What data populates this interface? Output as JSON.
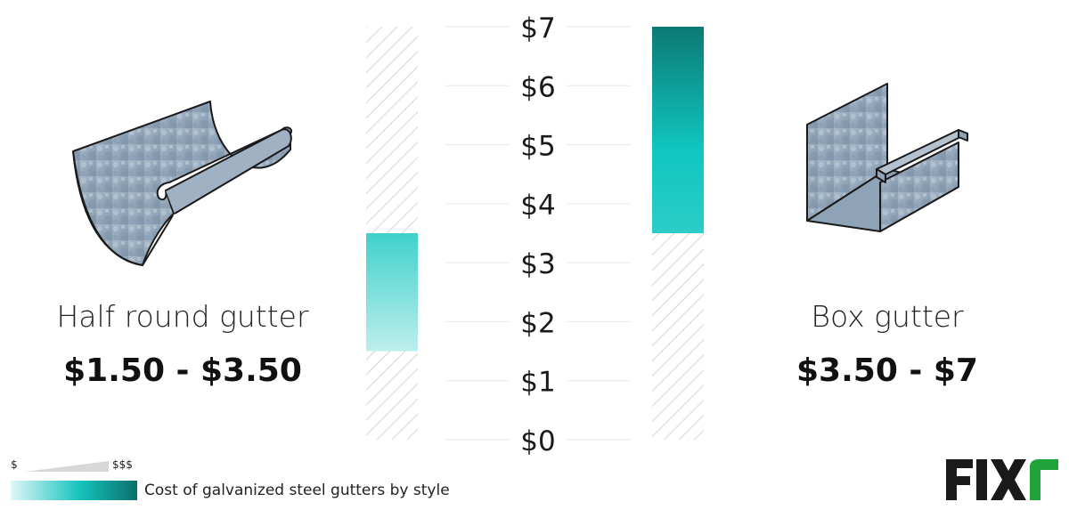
{
  "chart_data": {
    "type": "bar",
    "title": "Cost of galvanized steel gutters by style",
    "categories": [
      "Half round gutter",
      "Box gutter"
    ],
    "series": [
      {
        "values": [
          [
            1.5,
            3.5
          ],
          [
            3.5,
            7
          ]
        ]
      }
    ],
    "ylim": [
      0,
      7
    ],
    "y_ticks": [
      "$0",
      "$1",
      "$2",
      "$3",
      "$4",
      "$5",
      "$6",
      "$7"
    ],
    "grid": true,
    "colors": {
      "low": "#bff0ee",
      "mid": "#14c9c3",
      "high": "#0b7a74",
      "hatch": "#cccccc",
      "grid": "#e6e6e6"
    }
  },
  "items": [
    {
      "name": "Half round gutter",
      "range": "$1.50 - $3.50",
      "icon": "half-round-gutter-icon"
    },
    {
      "name": "Box gutter",
      "range": "$3.50 - $7",
      "icon": "box-gutter-icon"
    }
  ],
  "legend": {
    "min_label": "$",
    "max_label": "$$$",
    "caption": "Cost of galvanized steel gutters by style"
  },
  "brand": {
    "name": "FIXR",
    "color": "#1a1a1a",
    "accent": "#1fa33a"
  }
}
